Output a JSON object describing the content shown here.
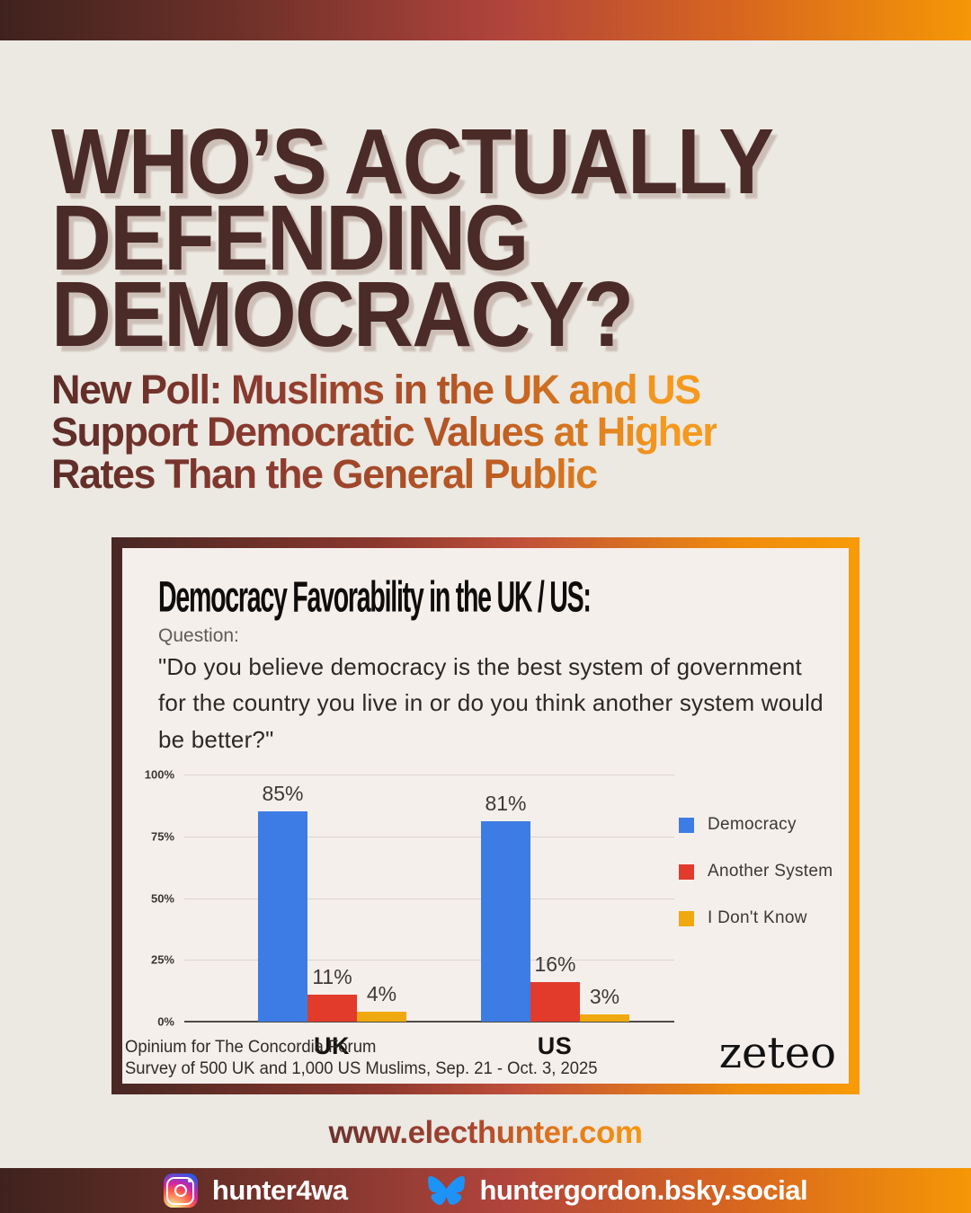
{
  "header": {
    "title_lines": [
      "WHO’S ACTUALLY",
      "DEFENDING",
      "DEMOCRACY?"
    ],
    "subtitle_lines": [
      "New Poll: Muslims in the UK and US",
      "Support Democratic Values at Higher",
      "Rates Than the General Public"
    ]
  },
  "card": {
    "title": "Democracy Favorability in the UK / US:",
    "question_label": "Question:",
    "question_text": "\"Do you believe democracy is the best system of government for the country you live in or do you think another system would be better?\"",
    "source_line1": "Opinium for The Concordia Forum",
    "source_line2": "Survey of 500 UK and 1,000 US Muslims, Sep. 21 - Oct. 3, 2025",
    "brand": "zeteo"
  },
  "chart_data": {
    "type": "bar",
    "categories": [
      "UK",
      "US"
    ],
    "series": [
      {
        "name": "Democracy",
        "color": "#3d7ce4",
        "values": [
          85,
          81
        ]
      },
      {
        "name": "Another System",
        "color": "#e23b2b",
        "values": [
          11,
          16
        ]
      },
      {
        "name": "I Don't Know",
        "color": "#efa90f",
        "values": [
          4,
          3
        ]
      }
    ],
    "value_labels": [
      [
        "85%",
        "11%",
        "4%"
      ],
      [
        "81%",
        "16%",
        "3%"
      ]
    ],
    "y_ticks": [
      "100%",
      "75%",
      "50%",
      "25%",
      "0%"
    ],
    "ylim": [
      0,
      100
    ],
    "grid": true,
    "legend_position": "right"
  },
  "footer": {
    "website": "www.electhunter.com",
    "instagram_handle": "hunter4wa",
    "bluesky_handle": "huntergordon.bsky.social"
  },
  "colors": {
    "background": "#ece8e2",
    "headline": "#4b2b27",
    "bar_gradient_start": "#3f221e",
    "bar_gradient_mid": "#b1443c",
    "bar_gradient_end": "#f59706",
    "card_background": "#f5efec",
    "democracy_blue": "#3d7ce4",
    "another_system_red": "#e23b2b",
    "dont_know_yellow": "#efa90f",
    "bluesky_blue": "#1d93f7"
  }
}
